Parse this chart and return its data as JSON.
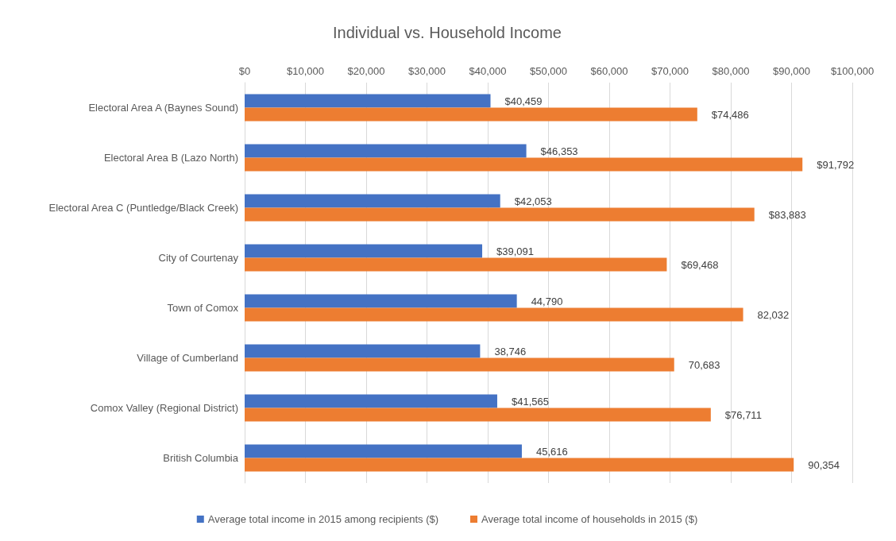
{
  "chart_data": {
    "type": "bar",
    "orientation": "horizontal",
    "title": "Individual vs. Household Income",
    "categories": [
      "Electoral Area A (Baynes Sound)",
      "Electoral Area B (Lazo North)",
      "Electoral Area C (Puntledge/Black Creek)",
      "City of Courtenay",
      "Town of Comox",
      "Village of Cumberland",
      "Comox Valley (Regional District)",
      "British Columbia"
    ],
    "series": [
      {
        "name": "Average total income in 2015 among recipients ($)",
        "color": "#4472c4",
        "values": [
          40459,
          46353,
          42053,
          39091,
          44790,
          38746,
          41565,
          45616
        ],
        "value_labels": [
          "$40,459",
          "$46,353",
          "$42,053",
          "$39,091",
          "44,790",
          "38,746",
          "$41,565",
          "45,616"
        ]
      },
      {
        "name": "Average total income of households in 2015 ($)",
        "color": "#ed7d31",
        "values": [
          74486,
          91792,
          83883,
          69468,
          82032,
          70683,
          76711,
          90354
        ],
        "value_labels": [
          "$74,486",
          "$91,792",
          "$83,883",
          "$69,468",
          "82,032",
          "70,683",
          "$76,711",
          "90,354"
        ]
      }
    ],
    "xlim": [
      0,
      100000
    ],
    "xticks": [
      {
        "value": 0,
        "label": "$0"
      },
      {
        "value": 10000,
        "label": "$10,000"
      },
      {
        "value": 20000,
        "label": "$20,000"
      },
      {
        "value": 30000,
        "label": "$30,000"
      },
      {
        "value": 40000,
        "label": "$40,000"
      },
      {
        "value": 50000,
        "label": "$50,000"
      },
      {
        "value": 60000,
        "label": "$60,000"
      },
      {
        "value": 70000,
        "label": "$70,000"
      },
      {
        "value": 80000,
        "label": "$80,000"
      },
      {
        "value": 90000,
        "label": "$90,000"
      },
      {
        "value": 100000,
        "label": "$100,000"
      }
    ],
    "grid": "x",
    "legend": "bottom"
  }
}
